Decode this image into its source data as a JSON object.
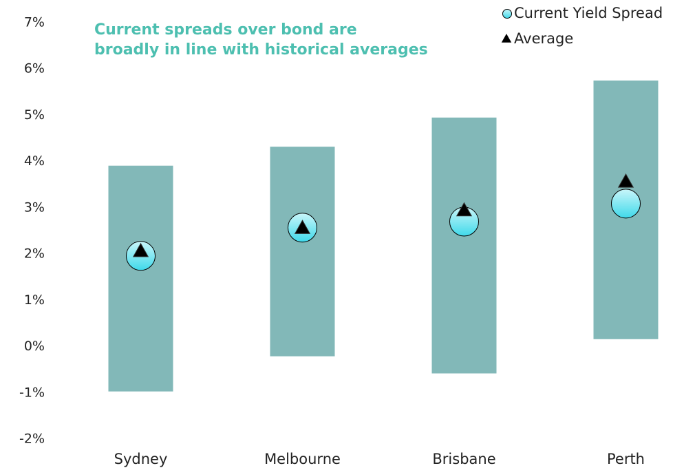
{
  "chart_data": {
    "type": "range",
    "title": [
      "Current spreads over bond are",
      "broadly in line with historical averages"
    ],
    "categories": [
      "Sydney",
      "Melbourne",
      "Brisbane",
      "Perth"
    ],
    "ranges": {
      "color": "#82b8b8",
      "low": [
        -0.97,
        -0.21,
        -0.58,
        0.16
      ],
      "high": [
        3.91,
        4.32,
        4.95,
        5.75
      ]
    },
    "series": [
      {
        "name": "Current Yield Spread",
        "color": "#5ee3ef",
        "marker": "circle",
        "values": [
          1.96,
          2.57,
          2.7,
          3.09
        ]
      },
      {
        "name": "Average",
        "color": "#000000",
        "marker": "triangle",
        "values": [
          2.05,
          2.55,
          2.93,
          3.55
        ]
      }
    ],
    "ylim": [
      -2,
      7
    ],
    "yticks": [
      {
        "value": -2,
        "label": "-2%"
      },
      {
        "value": -1,
        "label": "-1%"
      },
      {
        "value": 0,
        "label": "0%"
      },
      {
        "value": 1,
        "label": "1%"
      },
      {
        "value": 2,
        "label": "2%"
      },
      {
        "value": 3,
        "label": "3%"
      },
      {
        "value": 4,
        "label": "4%"
      },
      {
        "value": 5,
        "label": "5%"
      },
      {
        "value": 6,
        "label": "6%"
      },
      {
        "value": 7,
        "label": "7%"
      }
    ],
    "grid": false
  }
}
